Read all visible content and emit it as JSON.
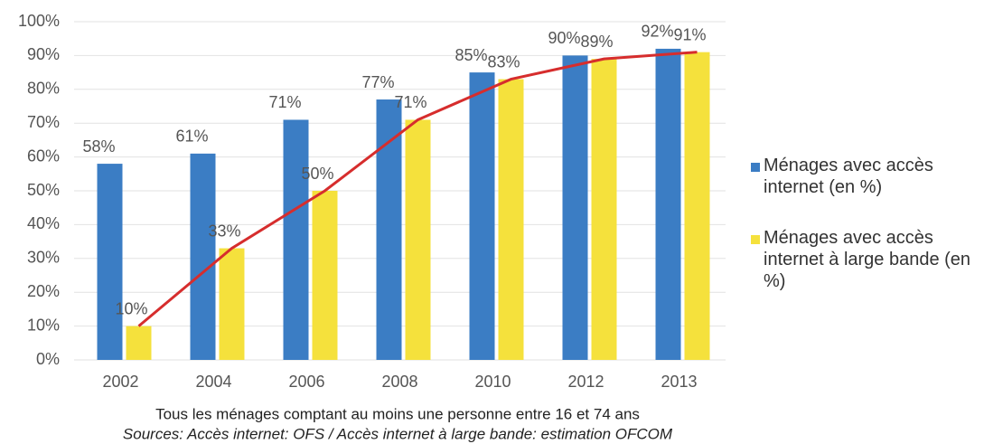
{
  "chart_data": {
    "type": "bar",
    "categories": [
      "2002",
      "2004",
      "2006",
      "2008",
      "2010",
      "2012",
      "2013"
    ],
    "series": [
      {
        "name": "Ménages avec accès internet (en %)",
        "color": "#3b7dc4",
        "values": [
          58,
          61,
          71,
          77,
          85,
          90,
          92
        ],
        "value_labels": [
          "58%",
          "61%",
          "71%",
          "77%",
          "85%",
          "90%",
          "92%"
        ]
      },
      {
        "name": "Ménages avec accès internet à large bande (en %)",
        "color": "#f5e13c",
        "values": [
          10,
          33,
          50,
          71,
          83,
          89,
          91
        ],
        "value_labels": [
          "10%",
          "33%",
          "50%",
          "71%",
          "83%",
          "89%",
          "91%"
        ]
      }
    ],
    "line_color": "#d62d2d",
    "ylim": [
      0,
      100
    ],
    "yticks": [
      {
        "value": 0,
        "label": "0%"
      },
      {
        "value": 10,
        "label": "10%"
      },
      {
        "value": 20,
        "label": "20%"
      },
      {
        "value": 30,
        "label": "30%"
      },
      {
        "value": 40,
        "label": "40%"
      },
      {
        "value": 50,
        "label": "50%"
      },
      {
        "value": 60,
        "label": "60%"
      },
      {
        "value": 70,
        "label": "70%"
      },
      {
        "value": 80,
        "label": "80%"
      },
      {
        "value": 90,
        "label": "90%"
      },
      {
        "value": 100,
        "label": "100%"
      }
    ],
    "grid": true,
    "legend": "right",
    "notes": [
      "Tous les ménages comptant au moins une personne entre 16 et 74 ans",
      "Sources: Accès internet: OFS / Accès internet à large bande: estimation OFCOM"
    ]
  }
}
